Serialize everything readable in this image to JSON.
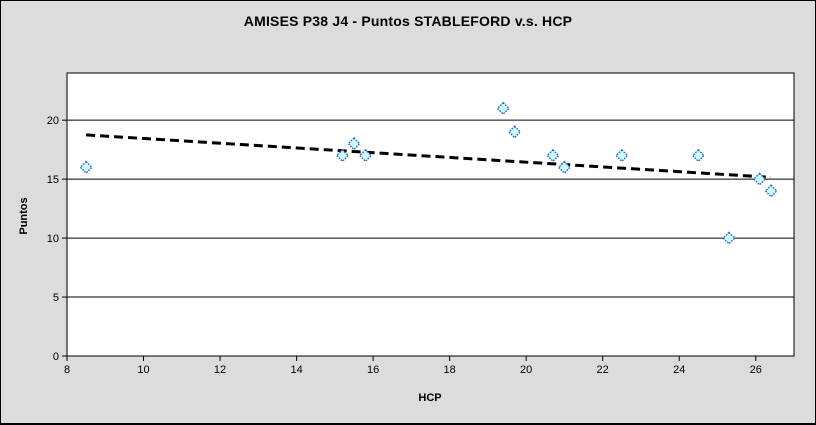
{
  "window": {
    "background_color": "#DCDCDC",
    "border_color": "#000000"
  },
  "chart_data": {
    "type": "scatter",
    "title": "AMISES P38 J4 - Puntos STABLEFORD v.s. HCP",
    "xlabel": "HCP",
    "ylabel": "Puntos",
    "xlim": [
      8,
      27
    ],
    "ylim": [
      0,
      24
    ],
    "x_ticks": [
      8,
      10,
      12,
      14,
      16,
      18,
      20,
      22,
      24,
      26
    ],
    "y_ticks": [
      0,
      5,
      10,
      15,
      20
    ],
    "grid": "horizontal-major-only",
    "legend_position": "none",
    "points": [
      [
        8.5,
        16
      ],
      [
        15.2,
        17
      ],
      [
        15.5,
        18
      ],
      [
        15.8,
        17
      ],
      [
        19.4,
        21
      ],
      [
        19.7,
        19
      ],
      [
        20.7,
        17
      ],
      [
        21.0,
        16
      ],
      [
        22.5,
        17
      ],
      [
        24.5,
        17
      ],
      [
        25.3,
        10
      ],
      [
        26.1,
        15
      ],
      [
        26.4,
        14
      ]
    ],
    "trendline": {
      "kind": "linear",
      "line_style": "dashed",
      "x_start": 8.5,
      "y_start": 18.75,
      "x_end": 26.4,
      "y_end": 15.15,
      "color": "#000000"
    },
    "marker": {
      "shape": "diamond",
      "fill": "#CCFFFF",
      "stroke": "#3366CC"
    },
    "colors": {
      "plot_background": "#FFFFFF",
      "gridline": "#000000",
      "axis": "#000000",
      "text": "#000000"
    }
  }
}
